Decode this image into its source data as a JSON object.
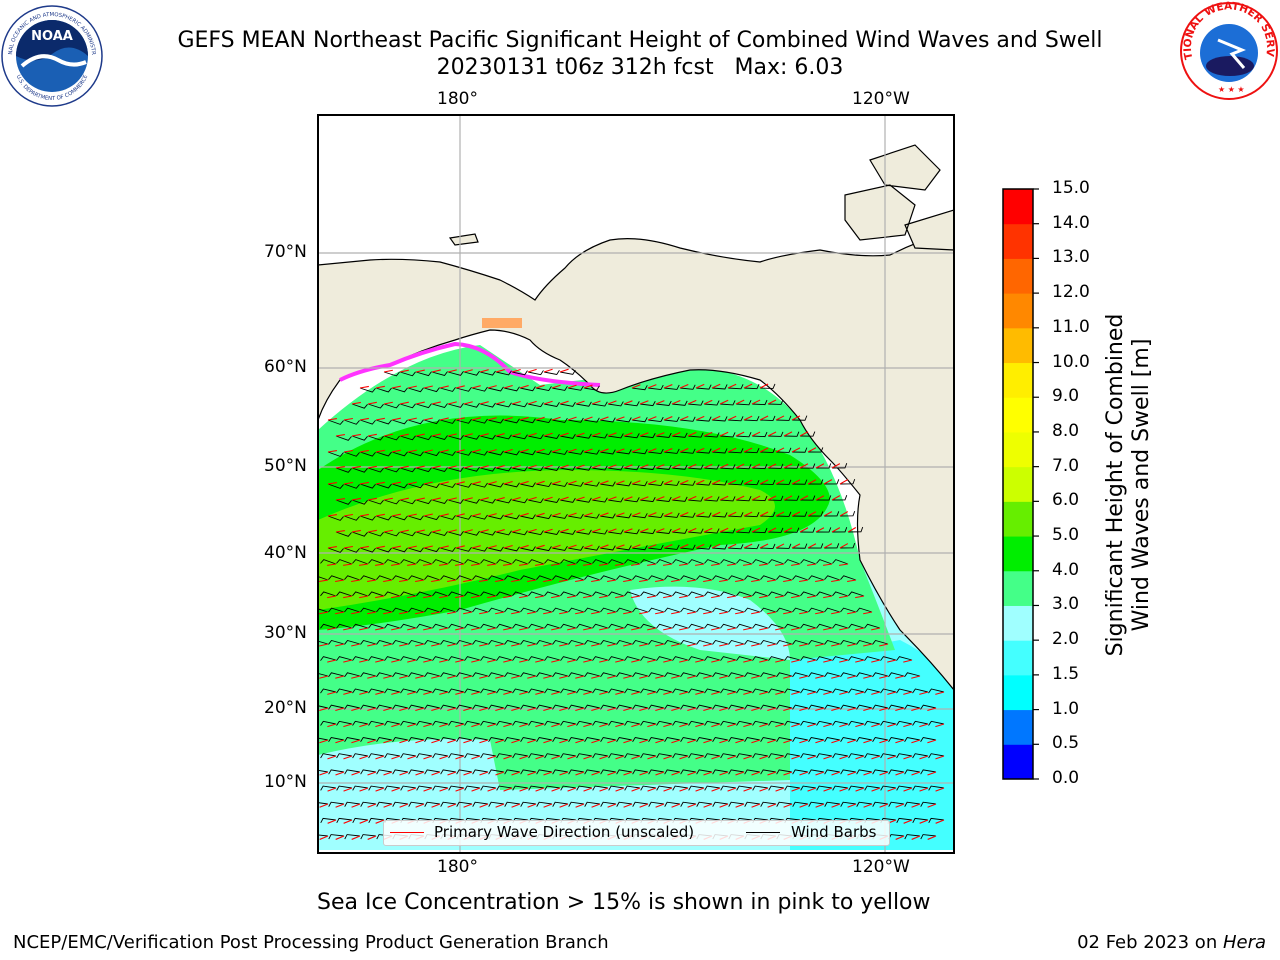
{
  "title": {
    "line1": "GEFS MEAN Northeast Pacific Significant Height of Combined Wind Waves and Swell",
    "line2": "20230131 t06z 312h fcst   Max: 6.03"
  },
  "map": {
    "lon_ticks_top": [
      "180°",
      "120°W"
    ],
    "lon_ticks_bottom": [
      "180°",
      "120°W"
    ],
    "lat_ticks": [
      "70°N",
      "60°N",
      "50°N",
      "40°N",
      "30°N",
      "20°N",
      "10°N"
    ],
    "land_color": "#efecdc",
    "ocean_color": "#ffffff",
    "grid_color": "#b0b0b0"
  },
  "legend": {
    "wave_label": "Primary Wave Direction (unscaled)",
    "wave_color": "#ff0000",
    "barb_label": "Wind Barbs",
    "barb_color": "#000000"
  },
  "colorbar": {
    "label_line1": "Significant Height of Combined",
    "label_line2": "Wind Waves and Swell [m]",
    "ticks": [
      "0.0",
      "0.5",
      "1.0",
      "1.5",
      "2.0",
      "3.0",
      "4.0",
      "5.0",
      "6.0",
      "7.0",
      "8.0",
      "9.0",
      "10.0",
      "11.0",
      "12.0",
      "13.0",
      "14.0",
      "15.0"
    ],
    "colors": [
      "#0000ff",
      "#0077ff",
      "#00ffff",
      "#44ffff",
      "#a0ffff",
      "#44ff88",
      "#00ee00",
      "#66ee00",
      "#ccff00",
      "#eeff00",
      "#ffff00",
      "#ffee00",
      "#ffbb00",
      "#ff8800",
      "#ff6600",
      "#ff3300",
      "#ff0000"
    ]
  },
  "caption": "Sea Ice Concentration > 15% is shown in pink to yellow",
  "footer": {
    "left": "NCEP/EMC/Verification Post Processing Product Generation Branch",
    "right_date": "02 Feb 2023 on ",
    "right_host": "Hera"
  },
  "logos": {
    "noaa_text": "NOAA",
    "noaa_ring": "NATIONAL OCEANIC AND ATMOSPHERIC ADMINISTRATION",
    "noaa_ring_bottom": "U.S. DEPARTMENT OF COMMERCE",
    "nws_ring": "NATIONAL WEATHER SERVICE"
  }
}
